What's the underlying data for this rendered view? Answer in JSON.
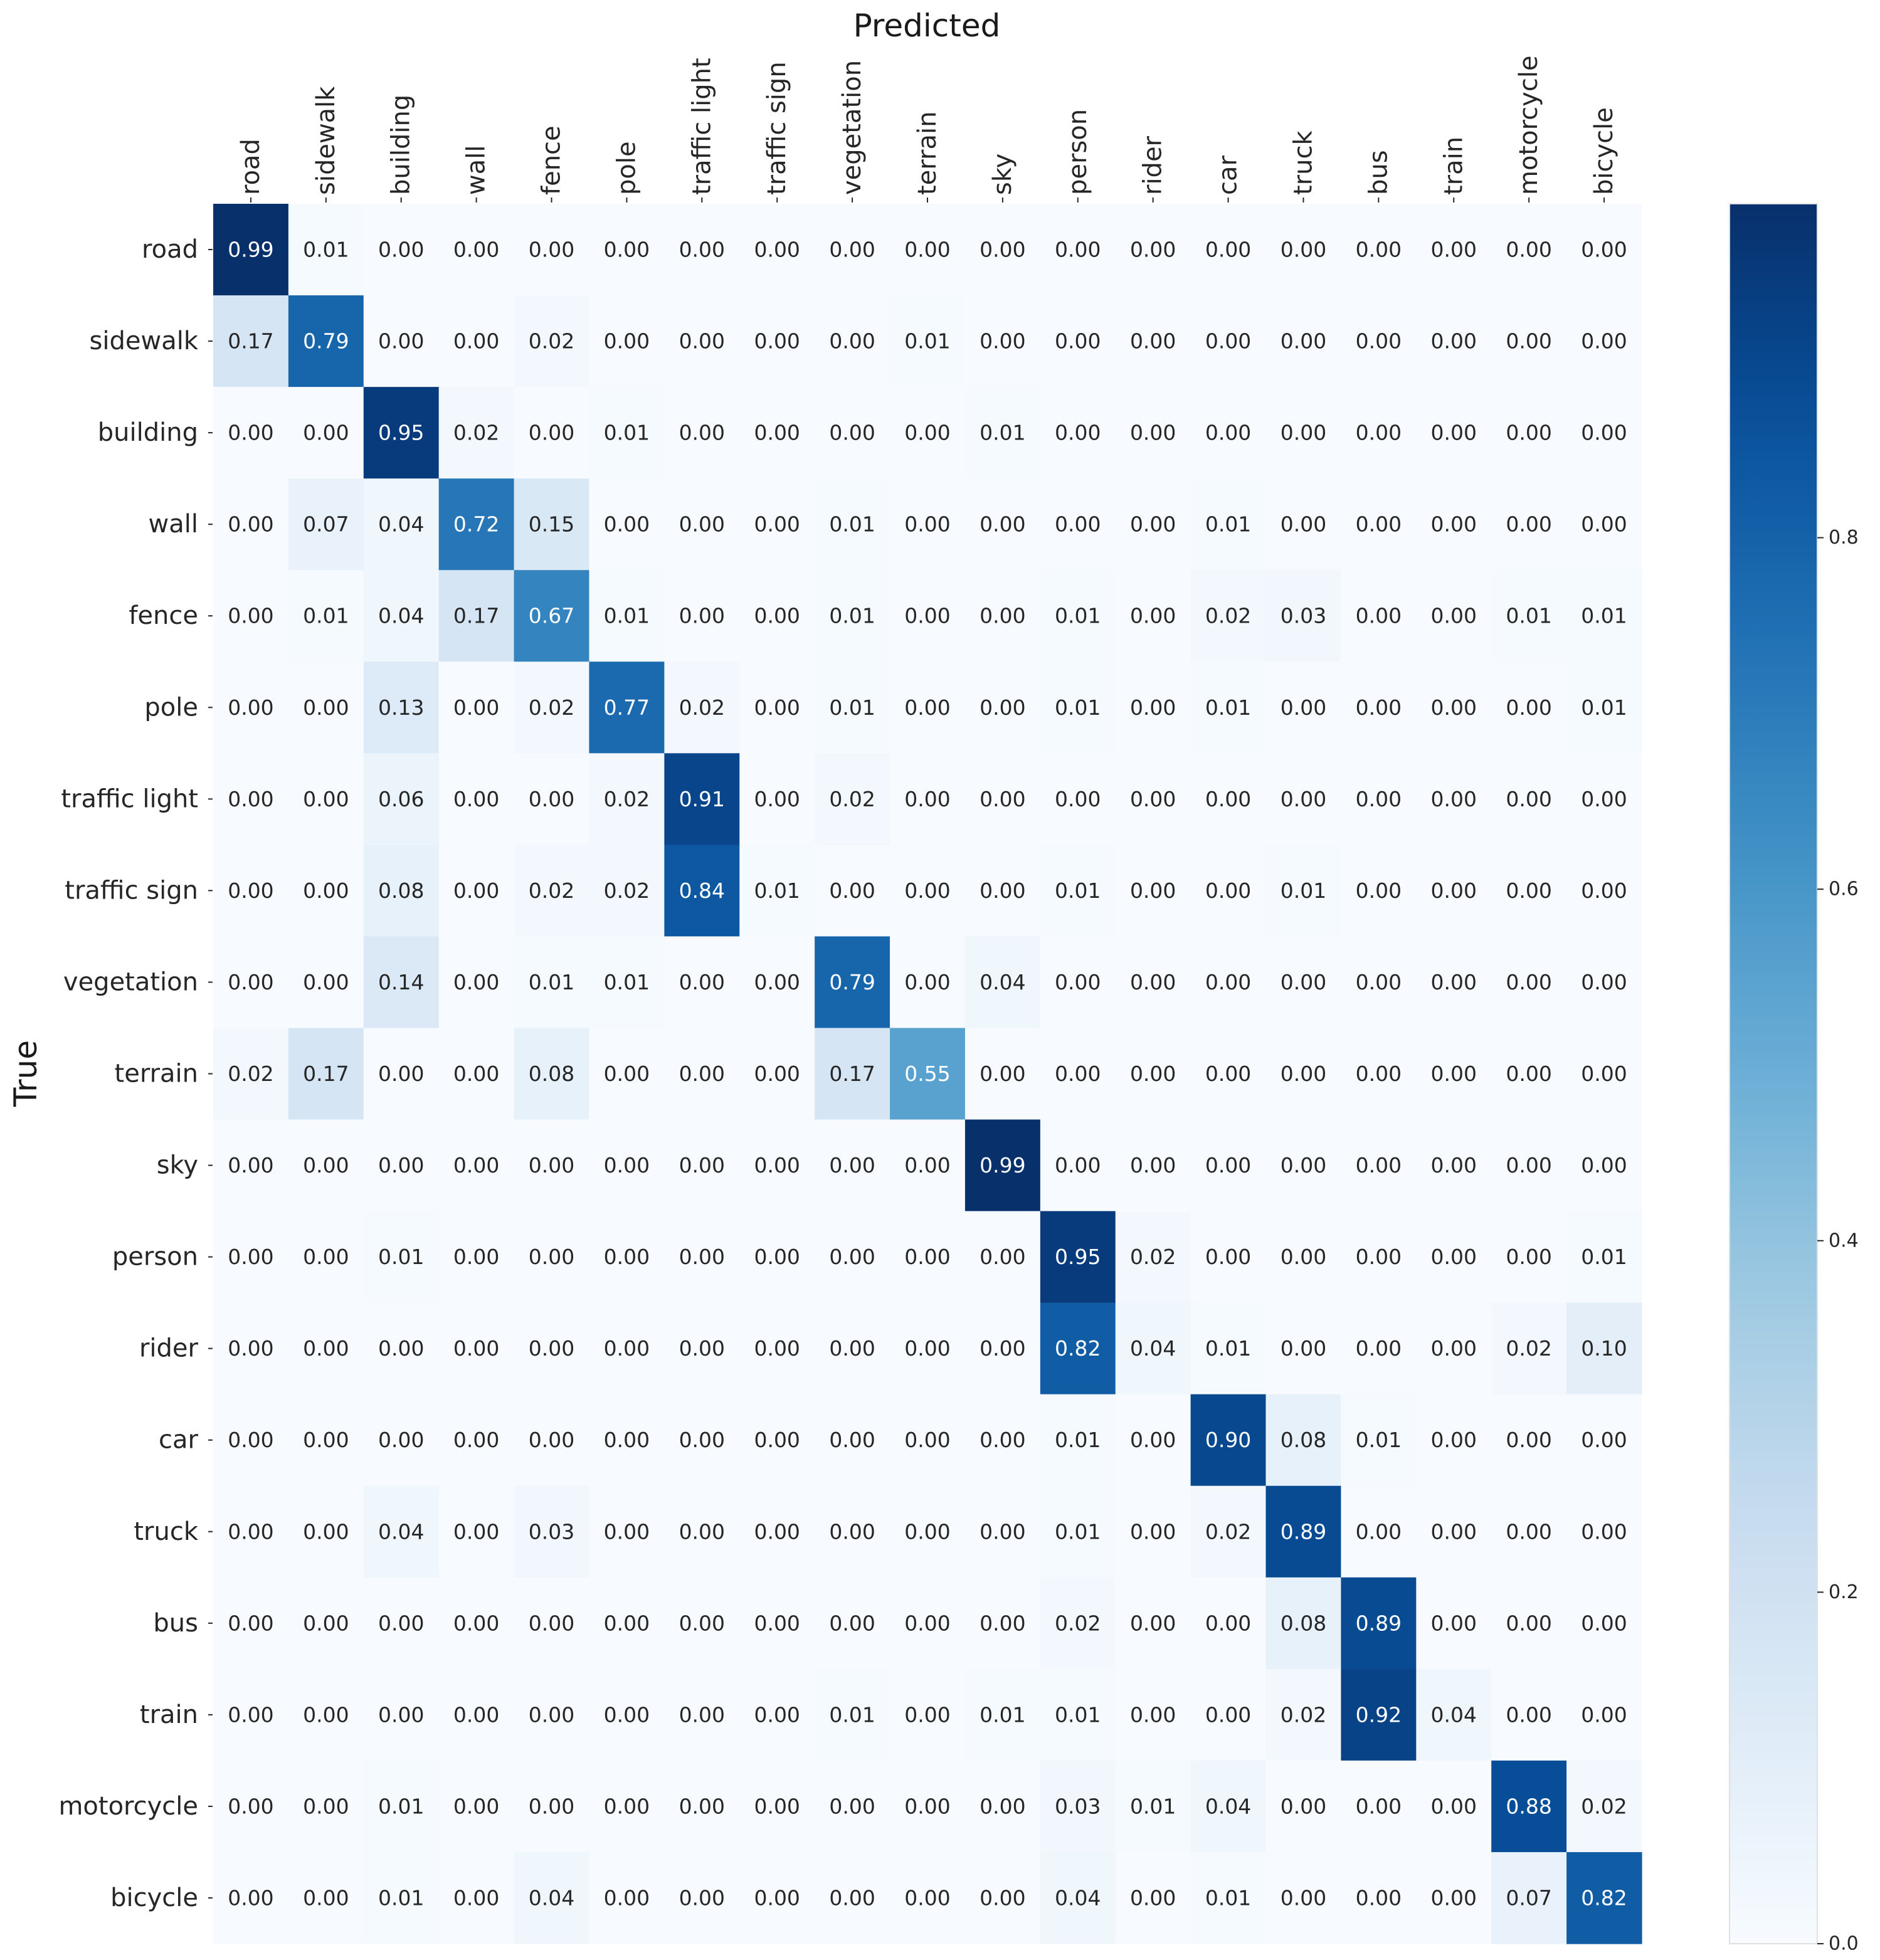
{
  "chart_data": {
    "type": "heatmap",
    "title": "",
    "xlabel": "Predicted",
    "ylabel": "True",
    "x_labels": [
      "road",
      "sidewalk",
      "building",
      "wall",
      "fence",
      "pole",
      "traffic light",
      "traffic sign",
      "vegetation",
      "terrain",
      "sky",
      "person",
      "rider",
      "car",
      "truck",
      "bus",
      "train",
      "motorcycle",
      "bicycle"
    ],
    "y_labels": [
      "road",
      "sidewalk",
      "building",
      "wall",
      "fence",
      "pole",
      "traffic light",
      "traffic sign",
      "vegetation",
      "terrain",
      "sky",
      "person",
      "rider",
      "car",
      "truck",
      "bus",
      "train",
      "motorcycle",
      "bicycle"
    ],
    "values": [
      [
        0.99,
        0.01,
        0.0,
        0.0,
        0.0,
        0.0,
        0.0,
        0.0,
        0.0,
        0.0,
        0.0,
        0.0,
        0.0,
        0.0,
        0.0,
        0.0,
        0.0,
        0.0,
        0.0
      ],
      [
        0.17,
        0.79,
        0.0,
        0.0,
        0.02,
        0.0,
        0.0,
        0.0,
        0.0,
        0.01,
        0.0,
        0.0,
        0.0,
        0.0,
        0.0,
        0.0,
        0.0,
        0.0,
        0.0
      ],
      [
        0.0,
        0.0,
        0.95,
        0.02,
        0.0,
        0.01,
        0.0,
        0.0,
        0.0,
        0.0,
        0.01,
        0.0,
        0.0,
        0.0,
        0.0,
        0.0,
        0.0,
        0.0,
        0.0
      ],
      [
        0.0,
        0.07,
        0.04,
        0.72,
        0.15,
        0.0,
        0.0,
        0.0,
        0.01,
        0.0,
        0.0,
        0.0,
        0.0,
        0.01,
        0.0,
        0.0,
        0.0,
        0.0,
        0.0
      ],
      [
        0.0,
        0.01,
        0.04,
        0.17,
        0.67,
        0.01,
        0.0,
        0.0,
        0.01,
        0.0,
        0.0,
        0.01,
        0.0,
        0.02,
        0.03,
        0.0,
        0.0,
        0.01,
        0.01
      ],
      [
        0.0,
        0.0,
        0.13,
        0.0,
        0.02,
        0.77,
        0.02,
        0.0,
        0.01,
        0.0,
        0.0,
        0.01,
        0.0,
        0.01,
        0.0,
        0.0,
        0.0,
        0.0,
        0.01
      ],
      [
        0.0,
        0.0,
        0.06,
        0.0,
        0.0,
        0.02,
        0.91,
        0.0,
        0.02,
        0.0,
        0.0,
        0.0,
        0.0,
        0.0,
        0.0,
        0.0,
        0.0,
        0.0,
        0.0
      ],
      [
        0.0,
        0.0,
        0.08,
        0.0,
        0.02,
        0.02,
        0.84,
        0.01,
        0.0,
        0.0,
        0.0,
        0.01,
        0.0,
        0.0,
        0.01,
        0.0,
        0.0,
        0.0,
        0.0
      ],
      [
        0.0,
        0.0,
        0.14,
        0.0,
        0.01,
        0.01,
        0.0,
        0.0,
        0.79,
        0.0,
        0.04,
        0.0,
        0.0,
        0.0,
        0.0,
        0.0,
        0.0,
        0.0,
        0.0
      ],
      [
        0.02,
        0.17,
        0.0,
        0.0,
        0.08,
        0.0,
        0.0,
        0.0,
        0.17,
        0.55,
        0.0,
        0.0,
        0.0,
        0.0,
        0.0,
        0.0,
        0.0,
        0.0,
        0.0
      ],
      [
        0.0,
        0.0,
        0.0,
        0.0,
        0.0,
        0.0,
        0.0,
        0.0,
        0.0,
        0.0,
        0.99,
        0.0,
        0.0,
        0.0,
        0.0,
        0.0,
        0.0,
        0.0,
        0.0
      ],
      [
        0.0,
        0.0,
        0.01,
        0.0,
        0.0,
        0.0,
        0.0,
        0.0,
        0.0,
        0.0,
        0.0,
        0.95,
        0.02,
        0.0,
        0.0,
        0.0,
        0.0,
        0.0,
        0.01
      ],
      [
        0.0,
        0.0,
        0.0,
        0.0,
        0.0,
        0.0,
        0.0,
        0.0,
        0.0,
        0.0,
        0.0,
        0.82,
        0.04,
        0.01,
        0.0,
        0.0,
        0.0,
        0.02,
        0.1
      ],
      [
        0.0,
        0.0,
        0.0,
        0.0,
        0.0,
        0.0,
        0.0,
        0.0,
        0.0,
        0.0,
        0.0,
        0.01,
        0.0,
        0.9,
        0.08,
        0.01,
        0.0,
        0.0,
        0.0
      ],
      [
        0.0,
        0.0,
        0.04,
        0.0,
        0.03,
        0.0,
        0.0,
        0.0,
        0.0,
        0.0,
        0.0,
        0.01,
        0.0,
        0.02,
        0.89,
        0.0,
        0.0,
        0.0,
        0.0
      ],
      [
        0.0,
        0.0,
        0.0,
        0.0,
        0.0,
        0.0,
        0.0,
        0.0,
        0.0,
        0.0,
        0.0,
        0.02,
        0.0,
        0.0,
        0.08,
        0.89,
        0.0,
        0.0,
        0.0
      ],
      [
        0.0,
        0.0,
        0.0,
        0.0,
        0.0,
        0.0,
        0.0,
        0.0,
        0.01,
        0.0,
        0.01,
        0.01,
        0.0,
        0.0,
        0.02,
        0.92,
        0.04,
        0.0,
        0.0
      ],
      [
        0.0,
        0.0,
        0.01,
        0.0,
        0.0,
        0.0,
        0.0,
        0.0,
        0.0,
        0.0,
        0.0,
        0.03,
        0.01,
        0.04,
        0.0,
        0.0,
        0.0,
        0.88,
        0.02
      ],
      [
        0.0,
        0.0,
        0.01,
        0.0,
        0.04,
        0.0,
        0.0,
        0.0,
        0.0,
        0.0,
        0.0,
        0.04,
        0.0,
        0.01,
        0.0,
        0.0,
        0.0,
        0.07,
        0.82
      ]
    ],
    "value_format": "0.00",
    "colormap": "Blues",
    "vmin": 0.0,
    "vmax": 0.99,
    "colorbar": {
      "ticks": [
        0.0,
        0.2,
        0.4,
        0.6,
        0.8
      ],
      "tick_labels": [
        "0.0",
        "0.2",
        "0.4",
        "0.6",
        "0.8"
      ],
      "position": "right"
    },
    "colors": {
      "low": "#f7fbff",
      "high": "#08306b",
      "text_dark": "#262626",
      "text_light": "#ffffff",
      "tick_mark": "#262626",
      "outline": "#d9d9d9"
    }
  }
}
